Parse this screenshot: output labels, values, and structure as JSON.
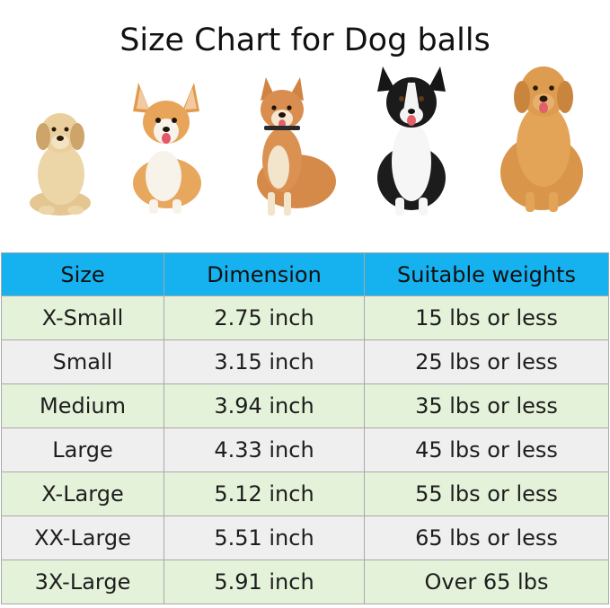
{
  "title": "Size Chart for Dog balls",
  "dogs": [
    {
      "name": "golden retriever puppy"
    },
    {
      "name": "corgi"
    },
    {
      "name": "shiba inu"
    },
    {
      "name": "border collie"
    },
    {
      "name": "golden retriever"
    }
  ],
  "table": {
    "headers": [
      "Size",
      "Dimension",
      "Suitable weights"
    ],
    "header_color": "#16b1ef",
    "row_colors": [
      "#e5f2da",
      "#efefef"
    ],
    "rows": [
      [
        "X-Small",
        "2.75 inch",
        "15 lbs or less"
      ],
      [
        "Small",
        "3.15 inch",
        "25 lbs or less"
      ],
      [
        "Medium",
        "3.94 inch",
        "35 lbs or less"
      ],
      [
        "Large",
        "4.33 inch",
        "45 lbs or less"
      ],
      [
        "X-Large",
        "5.12 inch",
        "55 lbs or less"
      ],
      [
        "XX-Large",
        "5.51 inch",
        "65 lbs or less"
      ],
      [
        "3X-Large",
        "5.91 inch",
        "Over 65 lbs"
      ]
    ]
  }
}
